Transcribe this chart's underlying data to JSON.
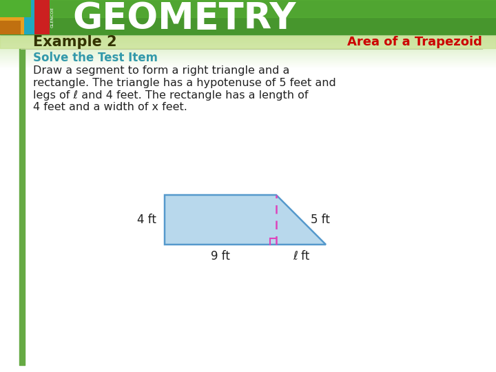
{
  "title": "GEOMETRY",
  "subtitle_left": "Example 2",
  "subtitle_right": "Area of a Trapezoid",
  "header_green": "#4a9a30",
  "header_green_dark": "#3a8020",
  "header_text_color": "#ffffff",
  "subheader_bg": "#c8e090",
  "body_bg": "#ffffff",
  "solve_text": "Solve the Test Item",
  "solve_color": "#3399aa",
  "body_text_lines": [
    "Draw a segment to form a right triangle and a",
    "rectangle. The triangle has a hypotenuse of 5 feet and",
    "legs of ℓ and 4 feet. The rectangle has a length of",
    "4 feet and a width of x feet."
  ],
  "body_text_color": "#222222",
  "trapezoid_fill": "#b8d8ec",
  "trapezoid_stroke": "#5599cc",
  "dashed_line_color": "#dd44bb",
  "right_angle_color": "#dd44bb",
  "label_color": "#222222",
  "label_4ft": "4 ft",
  "label_5ft": "5 ft",
  "label_9ft": "9 ft",
  "label_lft": "ℓ ft",
  "accent_bar_color": "#66aa44",
  "example2_color": "#333300",
  "subtitle_right_color": "#cc0000",
  "glencoe_label": "GLENCOE"
}
